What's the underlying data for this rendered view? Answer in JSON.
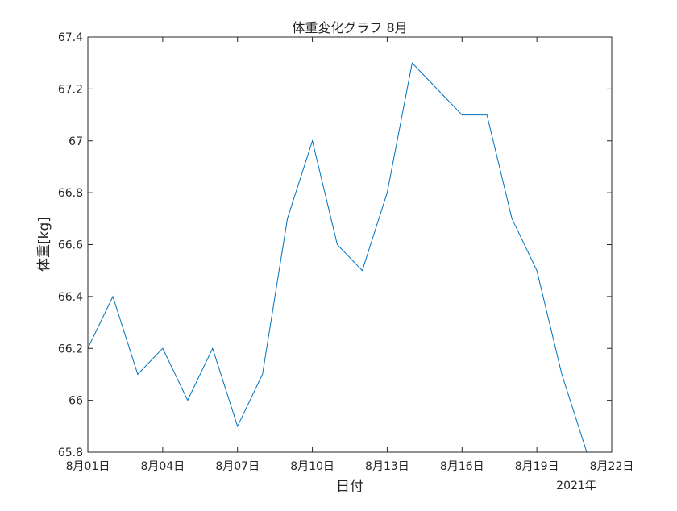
{
  "chart_data": {
    "type": "line",
    "title": "体重変化グラフ 8月",
    "xlabel": "日付",
    "ylabel": "体重[kg]",
    "x_secondary_label": "2021年",
    "x_tick_labels": [
      "8月01日",
      "8月04日",
      "8月07日",
      "8月10日",
      "8月13日",
      "8月16日",
      "8月19日",
      "8月22日"
    ],
    "x_tick_days": [
      1,
      4,
      7,
      10,
      13,
      16,
      19,
      22
    ],
    "y_tick_labels": [
      "65.8",
      "66",
      "66.2",
      "66.4",
      "66.6",
      "66.8",
      "67",
      "67.2",
      "67.4"
    ],
    "y_tick_values": [
      65.8,
      66.0,
      66.2,
      66.4,
      66.6,
      66.8,
      67.0,
      67.2,
      67.4
    ],
    "xlim": [
      "2021-08-01",
      "2021-08-22"
    ],
    "ylim": [
      65.8,
      67.4
    ],
    "grid": false,
    "series": [
      {
        "color": "#0072bd",
        "x": [
          "2021-08-01",
          "2021-08-02",
          "2021-08-03",
          "2021-08-04",
          "2021-08-05",
          "2021-08-06",
          "2021-08-07",
          "2021-08-08",
          "2021-08-09",
          "2021-08-10",
          "2021-08-11",
          "2021-08-12",
          "2021-08-13",
          "2021-08-14",
          "2021-08-15",
          "2021-08-16",
          "2021-08-17",
          "2021-08-18",
          "2021-08-19",
          "2021-08-20",
          "2021-08-21"
        ],
        "y": [
          66.2,
          66.4,
          66.1,
          66.2,
          66.0,
          66.2,
          65.9,
          66.1,
          66.7,
          67.0,
          66.6,
          66.5,
          66.8,
          67.3,
          67.2,
          67.1,
          67.1,
          66.7,
          66.5,
          66.1,
          65.8
        ]
      }
    ]
  }
}
